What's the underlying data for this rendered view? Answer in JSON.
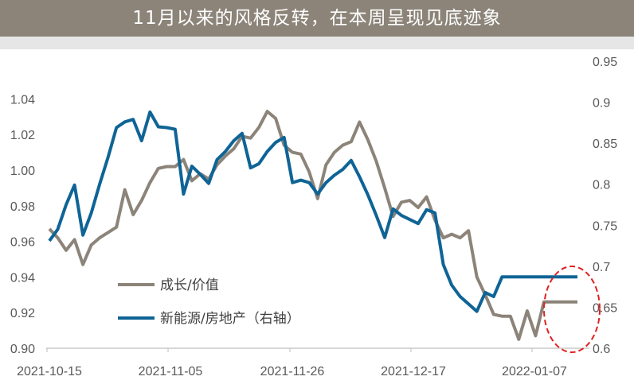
{
  "title": "11月以来的风格反转，在本周呈现见底迹象",
  "colors": {
    "header_bg": "#8c8479",
    "series_growth": "#8c8479",
    "series_energy": "#0f6496",
    "highlight": "#e02020"
  },
  "chart_data": {
    "type": "line",
    "title": "11月以来的风格反转，在本周呈现见底迹象",
    "x_tick_labels": [
      "2021-10-15",
      "2021-11-05",
      "2021-11-26",
      "2021-12-17",
      "2022-01-07"
    ],
    "y_left": {
      "ylim": [
        0.9,
        1.05
      ],
      "ticks": [
        0.9,
        0.92,
        0.94,
        0.96,
        0.98,
        1.0,
        1.02,
        1.04
      ]
    },
    "y_right": {
      "ylim": [
        0.6,
        0.95
      ],
      "ticks": [
        0.6,
        0.65,
        0.7,
        0.75,
        0.8,
        0.85,
        0.9,
        0.95
      ]
    },
    "grid": false,
    "legend_position": "lower-left",
    "series": [
      {
        "name": "成长/价值",
        "axis": "left",
        "x": [
          "2021-10-15",
          "2021-10-18",
          "2021-10-19",
          "2021-10-20",
          "2021-10-21",
          "2021-10-22",
          "2021-10-25",
          "2021-10-26",
          "2021-10-27",
          "2021-10-28",
          "2021-10-29",
          "2021-11-01",
          "2021-11-02",
          "2021-11-03",
          "2021-11-04",
          "2021-11-05",
          "2021-11-08",
          "2021-11-09",
          "2021-11-10",
          "2021-11-11",
          "2021-11-12",
          "2021-11-15",
          "2021-11-16",
          "2021-11-17",
          "2021-11-18",
          "2021-11-19",
          "2021-11-22",
          "2021-11-23",
          "2021-11-24",
          "2021-11-25",
          "2021-11-26",
          "2021-11-29",
          "2021-11-30",
          "2021-12-01",
          "2021-12-02",
          "2021-12-03",
          "2021-12-06",
          "2021-12-07",
          "2021-12-08",
          "2021-12-09",
          "2021-12-10",
          "2021-12-13",
          "2021-12-14",
          "2021-12-15",
          "2021-12-16",
          "2021-12-17",
          "2021-12-20",
          "2021-12-21",
          "2021-12-22",
          "2021-12-23",
          "2021-12-24",
          "2021-12-27",
          "2021-12-28",
          "2021-12-29",
          "2021-12-30",
          "2021-12-31",
          "2022-01-04",
          "2022-01-05",
          "2022-01-06",
          "2022-01-07",
          "2022-01-10",
          "2022-01-11",
          "2022-01-12",
          "2022-01-13",
          "2022-01-14"
        ],
        "values": [
          0.967,
          0.962,
          0.955,
          0.961,
          0.947,
          0.958,
          0.962,
          0.965,
          0.968,
          0.989,
          0.975,
          0.983,
          0.993,
          1.001,
          1.002,
          1.002,
          1.006,
          0.994,
          0.998,
          0.995,
          1.003,
          1.008,
          1.012,
          1.019,
          1.018,
          1.024,
          1.033,
          1.029,
          1.014,
          1.01,
          1.009,
          0.999,
          0.984,
          1.003,
          1.01,
          1.014,
          1.016,
          1.027,
          1.017,
          1.005,
          0.99,
          0.974,
          0.982,
          0.983,
          0.979,
          0.985,
          0.972,
          0.962,
          0.964,
          0.962,
          0.966,
          0.94,
          0.93,
          0.919,
          0.918,
          0.918,
          0.905,
          0.921,
          0.907,
          0.926,
          0.926,
          0.926,
          0.926,
          0.926,
          0.926
        ]
      },
      {
        "name": "新能源/房地产（右轴）",
        "axis": "right",
        "x": [
          "2021-10-15",
          "2021-10-18",
          "2021-10-19",
          "2021-10-20",
          "2021-10-21",
          "2021-10-22",
          "2021-10-25",
          "2021-10-26",
          "2021-10-27",
          "2021-10-28",
          "2021-10-29",
          "2021-11-01",
          "2021-11-02",
          "2021-11-03",
          "2021-11-04",
          "2021-11-05",
          "2021-11-08",
          "2021-11-09",
          "2021-11-10",
          "2021-11-11",
          "2021-11-12",
          "2021-11-15",
          "2021-11-16",
          "2021-11-17",
          "2021-11-18",
          "2021-11-19",
          "2021-11-22",
          "2021-11-23",
          "2021-11-24",
          "2021-11-25",
          "2021-11-26",
          "2021-11-29",
          "2021-11-30",
          "2021-12-01",
          "2021-12-02",
          "2021-12-03",
          "2021-12-06",
          "2021-12-07",
          "2021-12-08",
          "2021-12-09",
          "2021-12-10",
          "2021-12-13",
          "2021-12-14",
          "2021-12-15",
          "2021-12-16",
          "2021-12-17",
          "2021-12-20",
          "2021-12-21",
          "2021-12-22",
          "2021-12-23",
          "2021-12-24",
          "2021-12-27",
          "2021-12-28",
          "2021-12-29",
          "2021-12-30",
          "2021-12-31",
          "2022-01-04",
          "2022-01-05",
          "2022-01-06",
          "2022-01-07",
          "2022-01-10",
          "2022-01-11",
          "2022-01-12",
          "2022-01-13",
          "2022-01-14"
        ],
        "values": [
          0.731,
          0.745,
          0.775,
          0.799,
          0.738,
          0.765,
          0.8,
          0.833,
          0.869,
          0.876,
          0.879,
          0.853,
          0.888,
          0.87,
          0.869,
          0.867,
          0.788,
          0.822,
          0.812,
          0.801,
          0.83,
          0.84,
          0.853,
          0.862,
          0.82,
          0.825,
          0.84,
          0.851,
          0.857,
          0.802,
          0.805,
          0.802,
          0.788,
          0.802,
          0.811,
          0.818,
          0.829,
          0.809,
          0.787,
          0.762,
          0.735,
          0.77,
          0.762,
          0.757,
          0.752,
          0.769,
          0.765,
          0.702,
          0.677,
          0.663,
          0.654,
          0.645,
          0.668,
          0.663,
          0.687,
          0.687,
          0.687,
          0.687,
          0.687,
          0.687,
          0.687,
          0.687,
          0.687,
          0.687,
          0.687
        ]
      }
    ]
  }
}
